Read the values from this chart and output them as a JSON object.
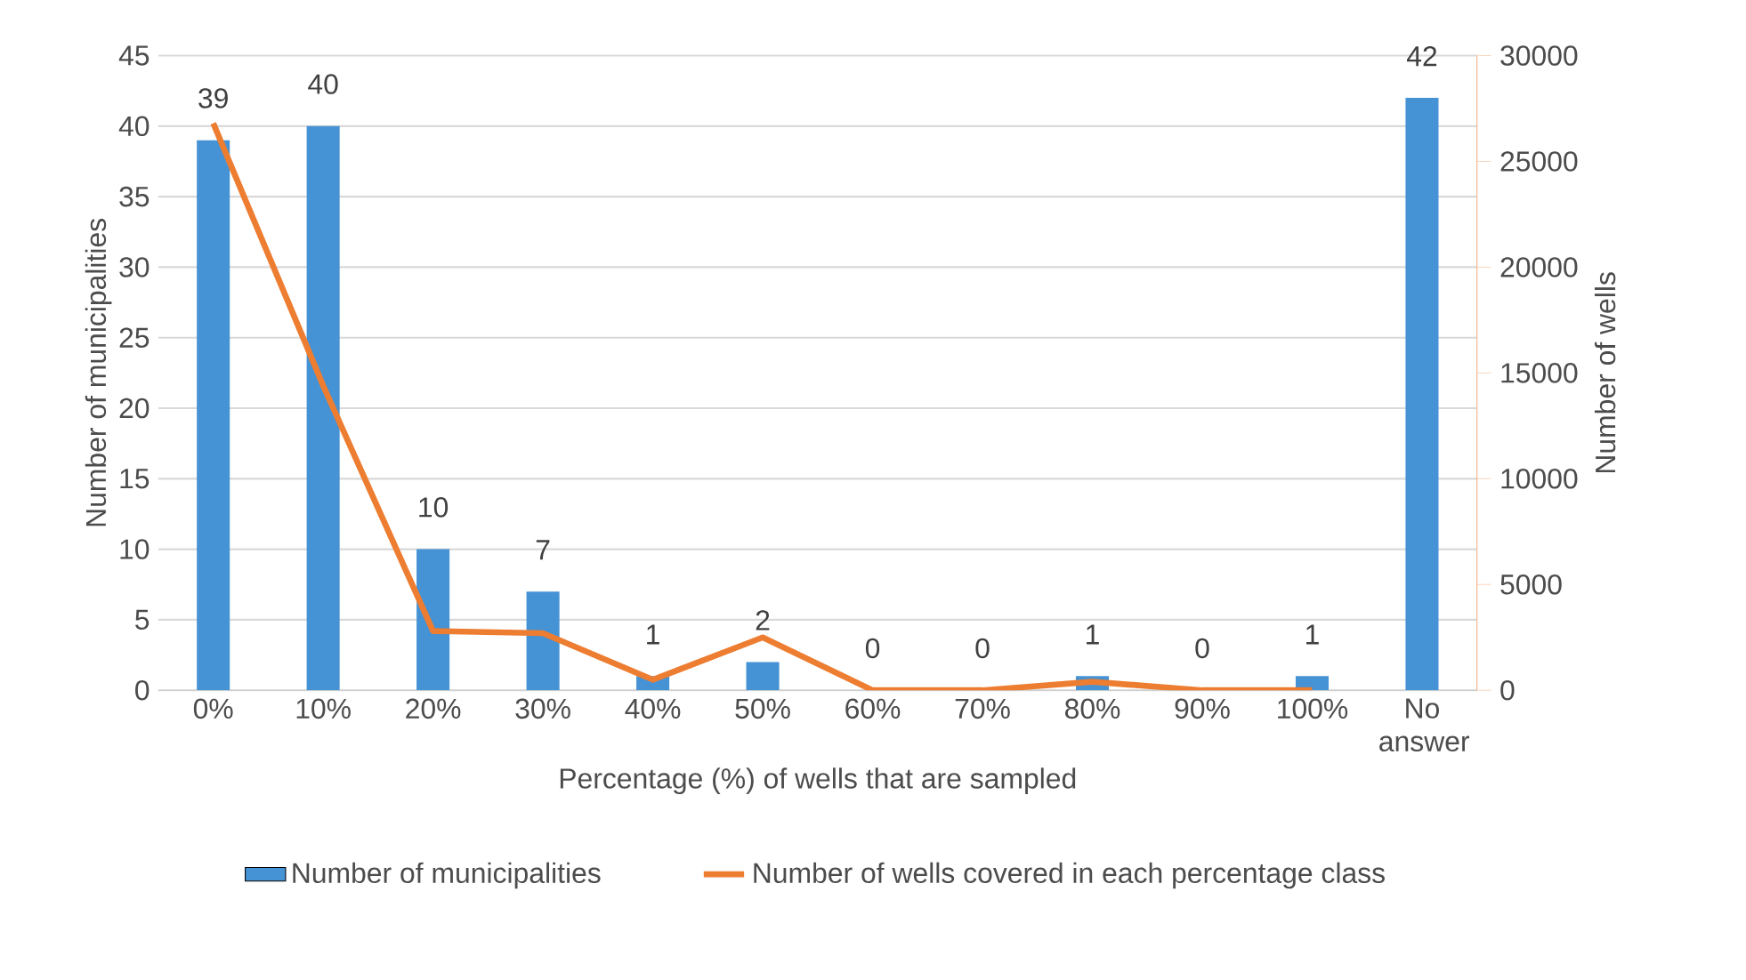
{
  "chart_data": {
    "type": "bar",
    "categories": [
      "0%",
      "10%",
      "20%",
      "30%",
      "40%",
      "50%",
      "60%",
      "70%",
      "80%",
      "90%",
      "100%",
      "No answer"
    ],
    "series": [
      {
        "name": "Number of municipalities",
        "color": "#4592d5",
        "values": [
          39,
          40,
          10,
          7,
          1,
          2,
          0,
          0,
          1,
          0,
          1,
          42
        ],
        "data_labels": true
      },
      {
        "name": "Number of wells covered in each percentage class",
        "type": "line",
        "axis": "y2",
        "color": "#ed7d31",
        "values": [
          26800,
          14400,
          2800,
          2700,
          500,
          2500,
          0,
          0,
          400,
          0,
          0,
          null
        ]
      }
    ],
    "xlabel": "Percentage (%) of wells that are sampled",
    "ylabel": "Number of municipalities",
    "y2label": "Number of wells",
    "ylim": [
      0,
      45
    ],
    "yticks": [
      0,
      5,
      10,
      15,
      20,
      25,
      30,
      35,
      40,
      45
    ],
    "y2lim": [
      0,
      30000
    ],
    "y2ticks": [
      0,
      5000,
      10000,
      15000,
      20000,
      25000,
      30000
    ],
    "grid": "y",
    "legend": "bottom"
  }
}
